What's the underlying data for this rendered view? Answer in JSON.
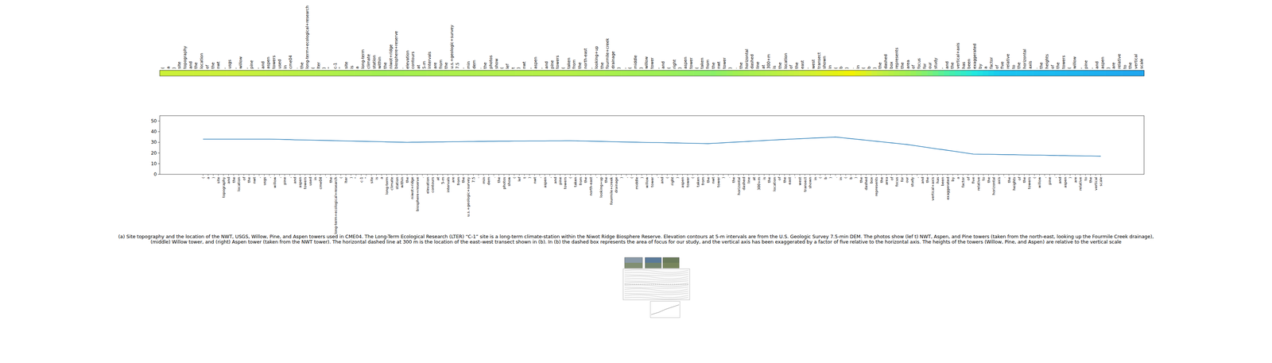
{
  "chart_data": {
    "type": "line",
    "categories": [
      "(",
      "a",
      ")",
      "site",
      "topography",
      "and",
      "the",
      "location",
      "of",
      "the",
      "nwt",
      ",",
      "usgs",
      ",",
      "willow",
      ",",
      "pine",
      ",",
      "and",
      "aspen",
      "towers",
      "used",
      "in",
      "cme04",
      ".",
      "the",
      "long-term+ecological+research",
      "(",
      "lter",
      ")",
      "\"",
      "c-1",
      "\"",
      "site",
      "is",
      "a",
      "long-term",
      "climate",
      "station",
      "within",
      "the",
      "niwot+ridge",
      "biosphere+reserve",
      ".",
      "elevation",
      "contours",
      "at",
      "5-m",
      "intervals",
      "are",
      "from",
      "the",
      "u.s.+geologic+survey",
      "7.5",
      "-",
      "min",
      "dem",
      ".",
      "the",
      "photos",
      "show",
      "(",
      "lef",
      "t",
      ")",
      "nwt",
      ",",
      "aspen",
      ",",
      "and",
      "pine",
      "towers",
      "(",
      "taken",
      "from",
      "the",
      "north-east",
      ",",
      "looking+up",
      "the",
      "fourmile+creek",
      "drainage",
      ")",
      ",",
      "(",
      "middle",
      ")",
      "willow",
      "tower",
      ",",
      "and",
      "(",
      "right",
      ")",
      "aspen",
      "tower",
      "(",
      "taken",
      "from",
      "the",
      "nwt",
      "tower",
      ")",
      ".",
      "the",
      "horizontal",
      "dashed",
      "line",
      "at",
      "300+m",
      "is",
      "the",
      "location",
      "of",
      "the",
      "east",
      "-",
      "west",
      "transect",
      "shown",
      "in",
      "(",
      "b",
      ")",
      ".",
      "in",
      "(",
      "b",
      ")",
      "the",
      "dashed",
      "box",
      "represents",
      "the",
      "area",
      "of",
      "focus",
      "for",
      "our",
      "study",
      ",",
      "and",
      "the",
      "vertical+axis",
      "has",
      "been",
      "exaggerated",
      "by",
      "a",
      "factor",
      "of",
      "five",
      "relative",
      "to",
      "the",
      "horizontal",
      "axis",
      ".",
      "the",
      "heights",
      "of",
      "the",
      "towers",
      "(",
      "willow",
      ",",
      "pine",
      ",",
      "and",
      "aspen",
      ")",
      "are",
      "relative",
      "to",
      "the",
      "vertical",
      "scale"
    ],
    "values": [
      33,
      33,
      33,
      33,
      33,
      33,
      33,
      33,
      33,
      33,
      33,
      33,
      33,
      33,
      32.9,
      32.8,
      32.7,
      32.6,
      32.4,
      32.3,
      32.2,
      32.1,
      32.0,
      31.9,
      31.8,
      31.7,
      31.6,
      31.4,
      31.3,
      31.2,
      31.1,
      31.0,
      30.9,
      30.8,
      30.7,
      30.6,
      30.4,
      30.3,
      30.2,
      30.1,
      30.0,
      30.1,
      30.1,
      30.2,
      30.3,
      30.3,
      30.4,
      30.4,
      30.5,
      30.6,
      30.6,
      30.7,
      30.8,
      30.8,
      30.9,
      30.9,
      31.0,
      31.0,
      31.1,
      31.1,
      31.1,
      31.2,
      31.2,
      31.2,
      31.3,
      31.3,
      31.3,
      31.3,
      31.4,
      31.4,
      31.4,
      31.5,
      31.5,
      31.4,
      31.3,
      31.2,
      31.1,
      31.0,
      30.9,
      30.8,
      30.6,
      30.5,
      30.4,
      30.3,
      30.2,
      30.1,
      30.0,
      29.9,
      29.8,
      29.8,
      29.7,
      29.6,
      29.5,
      29.4,
      29.3,
      29.2,
      29.1,
      29.0,
      28.9,
      28.8,
      29.1,
      29.3,
      29.6,
      29.9,
      30.1,
      30.4,
      30.6,
      30.9,
      31.2,
      31.4,
      31.7,
      32.0,
      32.2,
      32.5,
      32.7,
      33.0,
      33.2,
      33.4,
      33.6,
      33.9,
      34.1,
      34.3,
      34.5,
      34.8,
      35.0,
      34.5,
      34,
      33.5,
      33,
      32.5,
      32,
      31.5,
      31,
      30.5,
      30,
      29.5,
      29,
      28.5,
      28,
      27.3,
      26.6,
      25.9,
      25.2,
      24.5,
      23.8,
      23.2,
      22.5,
      21.8,
      21.1,
      20.4,
      19.7,
      19.0,
      18.9,
      18.8,
      18.8,
      18.7,
      18.6,
      18.5,
      18.4,
      18.4,
      18.3,
      18.2,
      18.1,
      18.0,
      18.0,
      17.9,
      17.8,
      17.7,
      17.6,
      17.6,
      17.5,
      17.4,
      17.3,
      17.2,
      17.2,
      17.1,
      17.0
    ],
    "color": "#1f77b4",
    "ylim": [
      0,
      55
    ],
    "yticks": [
      0,
      10,
      20,
      30,
      40,
      50
    ],
    "caption": "(a) Site topography and the location of the NWT, USGS, Willow, Pine, and Aspen towers used in CME04. The Long-Term Ecological Research (LTER) “C-1” site is a long-term climate-station within the Niwot Ridge Biosphere Reserve. Elevation contours at 5-m intervals are from the U.S. Geologic Survey 7.5-min DEM. The photos show (lef t) NWT, Aspen, and Pine towers (taken from the north-east, looking up the Fourmile Creek drainage), (middle) Willow tower, and (right) Aspen tower (taken from the NWT tower). The horizontal dashed line at 300 m is the location of the east–west transect shown in (b). In (b) the dashed box represents the area of focus for our study, and the vertical axis has been exaggerated by a factor of five relative to the horizontal axis. The heights of the towers (Willow, Pine, and Aspen) are relative to the vertical scale"
  }
}
